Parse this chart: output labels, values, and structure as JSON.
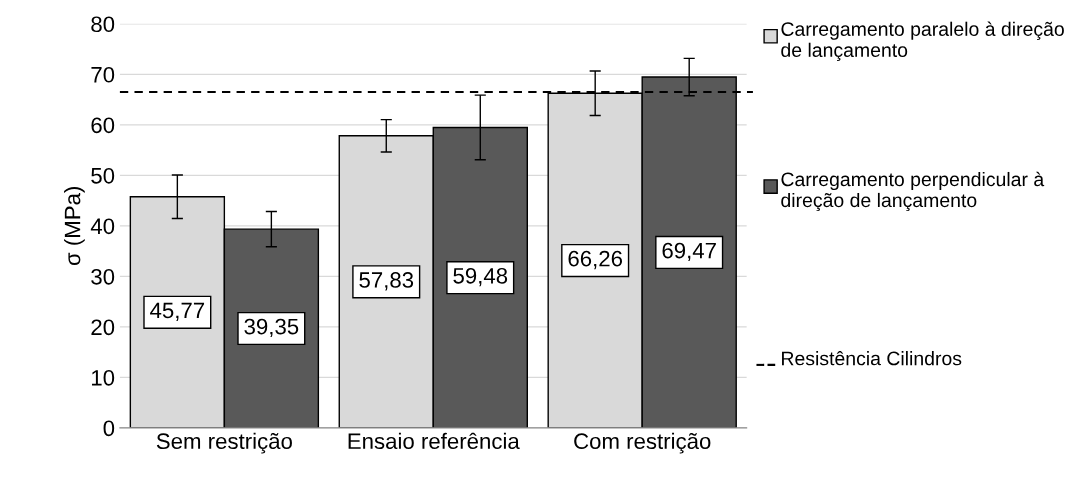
{
  "chart_data": {
    "type": "bar",
    "ylabel": "σ (MPa)",
    "categories": [
      "Sem restrição",
      "Ensaio referência",
      "Com restrição"
    ],
    "series": [
      {
        "name": "Carregamento paralelo à direção de lançamento",
        "color": "#d9d9d9",
        "values": [
          45.77,
          57.83,
          66.26
        ],
        "errors": [
          4.3,
          3.2,
          4.4
        ],
        "value_labels": [
          "45,77",
          "57,83",
          "66,26"
        ]
      },
      {
        "name": "Carregamento perpendicular à direção de lançamento",
        "color": "#595959",
        "values": [
          39.35,
          59.48,
          69.47
        ],
        "errors": [
          3.5,
          6.4,
          3.7
        ],
        "value_labels": [
          "39,35",
          "59,48",
          "69,47"
        ]
      }
    ],
    "ylim": [
      0,
      80
    ],
    "yticks": [
      0,
      10,
      20,
      30,
      40,
      50,
      60,
      70,
      80
    ],
    "grid": "y",
    "legend": "right",
    "ref_lines": [
      {
        "axis": "y",
        "value": 66.5,
        "label": "Resistência Cilindros",
        "color": "#000000",
        "line_style": "dashed"
      }
    ]
  }
}
